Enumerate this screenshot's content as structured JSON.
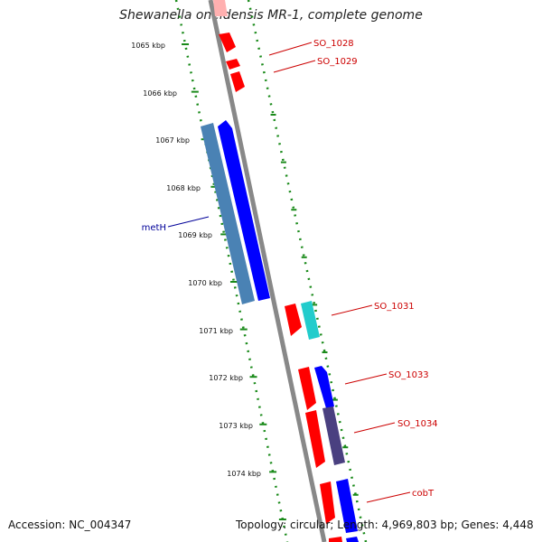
{
  "title": "Shewanella oneidensis MR-1, complete genome",
  "footer": {
    "accession": "Accession: NC_004347",
    "topology": "Topology: circular; Length: 4,969,803 bp; Genes: 4,448"
  },
  "colors": {
    "forward_gene": "#ff0000",
    "reverse_gene": "#0000ff",
    "reverse_gene_light": "#4a82b4",
    "cyan_gene": "#22cccc",
    "purple_gene": "#4a4080",
    "backbone": "#888888",
    "ticks": "#1a8a1a",
    "label_red": "#cc0000",
    "label_blue": "#000099"
  },
  "ruler": [
    {
      "label": "1065 kbp"
    },
    {
      "label": "1066 kbp"
    },
    {
      "label": "1067 kbp"
    },
    {
      "label": "1068 kbp"
    },
    {
      "label": "1069 kbp"
    },
    {
      "label": "1070 kbp"
    },
    {
      "label": "1071 kbp"
    },
    {
      "label": "1072 kbp"
    },
    {
      "label": "1073 kbp"
    },
    {
      "label": "1074 kbp"
    }
  ],
  "gene_labels": [
    {
      "text": "SO_1028"
    },
    {
      "text": "SO_1029"
    },
    {
      "text": "metH"
    },
    {
      "text": "SO_1031"
    },
    {
      "text": "SO_1033"
    },
    {
      "text": "SO_1034"
    },
    {
      "text": "cobT"
    }
  ]
}
